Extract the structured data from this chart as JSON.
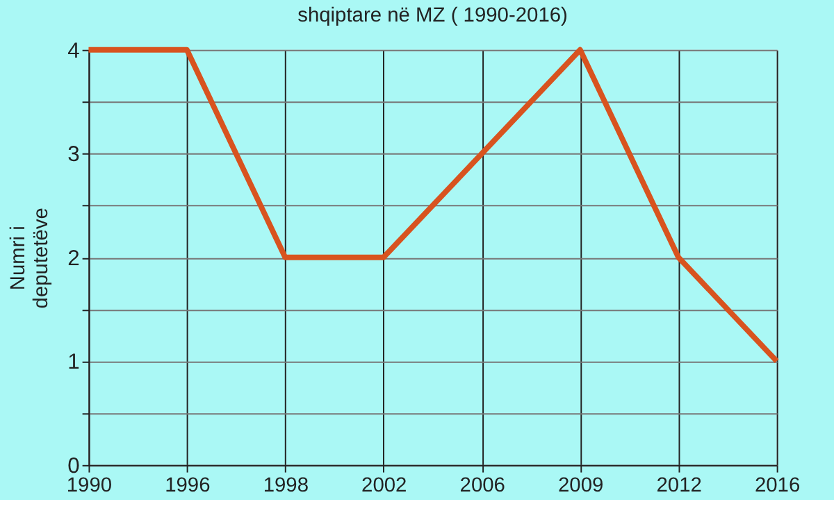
{
  "chart_data": {
    "type": "line",
    "title": "shqiptare në MZ ( 1990-2016)",
    "ylabel": "Numri i\ndeputetëve",
    "categories": [
      "1990",
      "1996",
      "1998",
      "2002",
      "2006",
      "2009",
      "2012",
      "2016"
    ],
    "series": [
      {
        "color": "#d8531f",
        "values": [
          4,
          4,
          2,
          2,
          3,
          4,
          2,
          1
        ]
      }
    ],
    "ylim": [
      0,
      4
    ],
    "yticks": [
      0,
      {
        "value": 0.5,
        "label": null
      },
      1,
      {
        "value": 1.5,
        "label": null
      },
      2,
      {
        "value": 2.5,
        "label": null
      },
      3,
      {
        "value": 3.5,
        "label": null
      },
      4
    ],
    "grid": true,
    "marker": "none",
    "line_style": "solid"
  }
}
